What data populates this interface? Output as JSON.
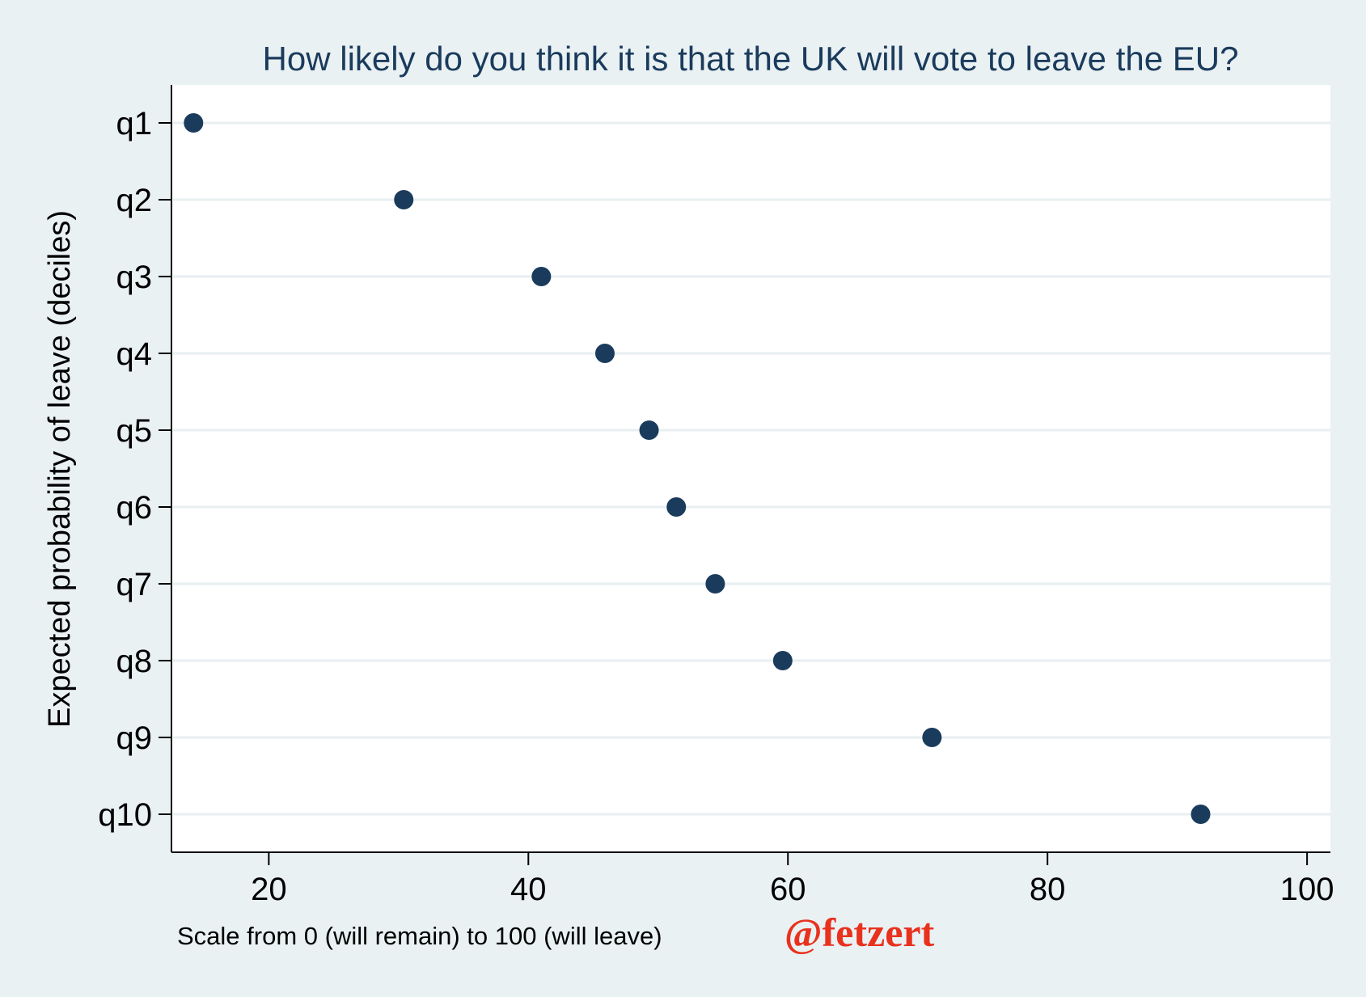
{
  "colors": {
    "outer_background": "#eaf1f3",
    "plot_background": "#ffffff",
    "gridline": "#e8eff1",
    "axis": "#000000",
    "marker": "#1a3b5c",
    "title": "#1a3b5c",
    "text": "#000000",
    "watermark": "#e8321e"
  },
  "watermark": "@fetzert",
  "chart_data": {
    "type": "scatter",
    "title": "How likely do you think it is that the UK will vote to leave the EU?",
    "xlabel": "Scale from 0 (will remain) to 100 (will leave)",
    "ylabel": "Expected probability of leave (deciles)",
    "xlim": [
      12.5,
      101.8
    ],
    "x_ticks": [
      20,
      40,
      60,
      80,
      100
    ],
    "categories": [
      "q1",
      "q2",
      "q3",
      "q4",
      "q5",
      "q6",
      "q7",
      "q8",
      "q9",
      "q10"
    ],
    "values": [
      14.2,
      30.4,
      41.0,
      45.9,
      49.3,
      51.4,
      54.4,
      59.6,
      71.1,
      91.8
    ],
    "grid": true,
    "legend": "none"
  }
}
